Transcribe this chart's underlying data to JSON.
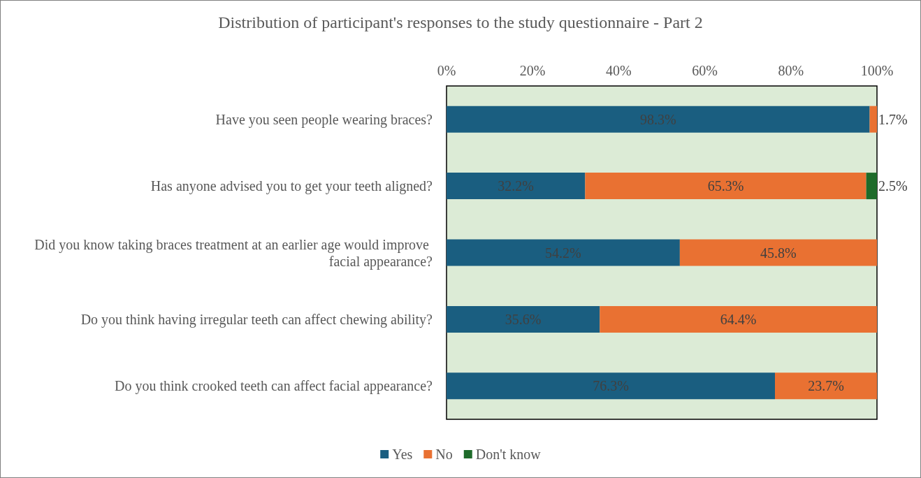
{
  "chart_data": {
    "type": "bar",
    "orientation": "horizontal",
    "stacked": true,
    "title": "Distribution of participant's responses to the study questionnaire - Part 2",
    "categories": [
      "Have you seen people wearing braces?",
      "Has anyone advised you to get your teeth aligned?",
      "Did you know taking braces treatment at an earlier age would improve facial appearance?",
      "Do you think having irregular teeth can affect chewing ability?",
      "Do you think crooked teeth can affect facial appearance?"
    ],
    "series": [
      {
        "name": "Yes",
        "color": "#1a5e80",
        "values": [
          98.3,
          32.2,
          54.2,
          35.6,
          76.3
        ],
        "value_labels": [
          "98.3%",
          "32.2%",
          "54.2%",
          "35.6%",
          "76.3%"
        ]
      },
      {
        "name": "No",
        "color": "#e97132",
        "values": [
          1.7,
          65.3,
          45.8,
          64.4,
          23.7
        ],
        "value_labels": [
          "1.7%",
          "65.3%",
          "45.8%",
          "64.4%",
          "23.7%"
        ]
      },
      {
        "name": "Don't know",
        "color": "#1e6b2a",
        "values": [
          null,
          2.5,
          null,
          null,
          null
        ],
        "value_labels": [
          null,
          "2.5%",
          null,
          null,
          null
        ]
      }
    ],
    "xlim": [
      0,
      100
    ],
    "xticks": [
      {
        "value": 0,
        "label": "0%"
      },
      {
        "value": 20,
        "label": "20%"
      },
      {
        "value": 40,
        "label": "40%"
      },
      {
        "value": 60,
        "label": "60%"
      },
      {
        "value": 80,
        "label": "80%"
      },
      {
        "value": 100,
        "label": "100%"
      }
    ],
    "grid": false,
    "legend": "bottom"
  }
}
